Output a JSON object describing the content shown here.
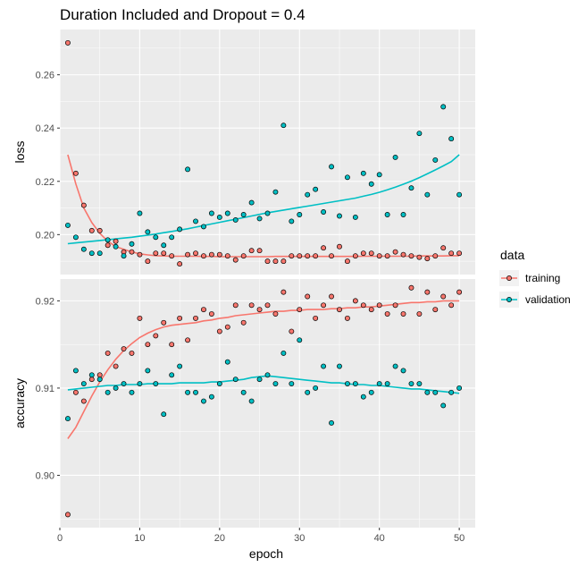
{
  "chart_data": {
    "type": "scatter",
    "title": "Duration Included and Dropout = 0.4",
    "xlabel": "epoch",
    "x_ticks": [
      0,
      10,
      20,
      30,
      40,
      50
    ],
    "xlim": [
      0,
      52
    ],
    "legend": {
      "title": "data",
      "placement": "right",
      "entries": [
        "training",
        "validation"
      ]
    },
    "colors": {
      "training": "#F8766D",
      "validation": "#00BFC4",
      "panel": "#EBEBEB",
      "grid": "#FFFFFF"
    },
    "panels": [
      {
        "ylabel": "loss",
        "ylim": [
          0.185,
          0.277
        ],
        "y_ticks": [
          0.2,
          0.22,
          0.24,
          0.26
        ],
        "y_tick_labels": [
          "0.20",
          "0.22",
          "0.24",
          "0.26"
        ],
        "series": [
          {
            "name": "training",
            "x": [
              1,
              2,
              3,
              4,
              5,
              6,
              7,
              8,
              9,
              10,
              11,
              12,
              13,
              14,
              15,
              16,
              17,
              18,
              19,
              20,
              21,
              22,
              23,
              24,
              25,
              26,
              27,
              28,
              29,
              30,
              31,
              32,
              33,
              34,
              35,
              36,
              37,
              38,
              39,
              40,
              41,
              42,
              43,
              44,
              45,
              46,
              47,
              48,
              49,
              50
            ],
            "values": [
              0.272,
              0.223,
              0.211,
              0.2015,
              0.2015,
              0.196,
              0.1975,
              0.1935,
              0.1935,
              0.1925,
              0.19,
              0.193,
              0.193,
              0.192,
              0.189,
              0.1925,
              0.193,
              0.192,
              0.1925,
              0.1925,
              0.192,
              0.1905,
              0.192,
              0.194,
              0.194,
              0.19,
              0.19,
              0.19,
              0.192,
              0.192,
              0.192,
              0.192,
              0.195,
              0.192,
              0.1955,
              0.19,
              0.192,
              0.193,
              0.193,
              0.192,
              0.192,
              0.1935,
              0.1925,
              0.192,
              0.1915,
              0.191,
              0.192,
              0.195,
              0.193,
              0.193
            ],
            "smooth": [
              0.23,
              0.219,
              0.21,
              0.2045,
              0.2005,
              0.1975,
              0.1955,
              0.1945,
              0.1935,
              0.1928,
              0.1924,
              0.1921,
              0.192,
              0.1919,
              0.1919,
              0.1919,
              0.1919,
              0.1918,
              0.1918,
              0.1917,
              0.1917,
              0.1917,
              0.1917,
              0.1917,
              0.1917,
              0.1917,
              0.1918,
              0.1918,
              0.1918,
              0.1918,
              0.1918,
              0.1918,
              0.1918,
              0.1918,
              0.1918,
              0.1918,
              0.1918,
              0.1919,
              0.1919,
              0.1919,
              0.1919,
              0.1919,
              0.1919,
              0.1919,
              0.192,
              0.192,
              0.192,
              0.192,
              0.1921,
              0.1921
            ]
          },
          {
            "name": "validation",
            "x": [
              1,
              2,
              3,
              4,
              5,
              6,
              7,
              8,
              9,
              10,
              11,
              12,
              13,
              14,
              15,
              16,
              17,
              18,
              19,
              20,
              21,
              22,
              23,
              24,
              25,
              26,
              27,
              28,
              29,
              30,
              31,
              32,
              33,
              34,
              35,
              36,
              37,
              38,
              39,
              40,
              41,
              42,
              43,
              44,
              45,
              46,
              47,
              48,
              49,
              50
            ],
            "values": [
              0.2035,
              0.199,
              0.1945,
              0.193,
              0.193,
              0.198,
              0.1955,
              0.192,
              0.1965,
              0.208,
              0.201,
              0.199,
              0.196,
              0.199,
              0.202,
              0.2245,
              0.205,
              0.203,
              0.208,
              0.2065,
              0.208,
              0.2055,
              0.2075,
              0.212,
              0.206,
              0.208,
              0.216,
              0.241,
              0.205,
              0.2075,
              0.215,
              0.217,
              0.2085,
              0.2255,
              0.207,
              0.2215,
              0.2065,
              0.223,
              0.219,
              0.2225,
              0.2075,
              0.229,
              0.2075,
              0.2175,
              0.238,
              0.215,
              0.228,
              0.248,
              0.236,
              0.215
            ],
            "smooth": [
              0.1966,
              0.1969,
              0.1972,
              0.1975,
              0.1978,
              0.1981,
              0.1984,
              0.1987,
              0.199,
              0.1994,
              0.1998,
              0.2002,
              0.2007,
              0.2012,
              0.2017,
              0.2022,
              0.2028,
              0.2034,
              0.204,
              0.2046,
              0.2052,
              0.2058,
              0.2064,
              0.207,
              0.2076,
              0.2082,
              0.2087,
              0.2092,
              0.2097,
              0.2102,
              0.2107,
              0.2112,
              0.2117,
              0.2122,
              0.2127,
              0.2132,
              0.2137,
              0.2144,
              0.2151,
              0.2159,
              0.2168,
              0.2178,
              0.2189,
              0.2201,
              0.2214,
              0.2228,
              0.2243,
              0.2258,
              0.2274,
              0.23
            ]
          }
        ]
      },
      {
        "ylabel": "accuracy",
        "ylim": [
          0.894,
          0.9225
        ],
        "y_ticks": [
          0.9,
          0.91,
          0.92
        ],
        "y_tick_labels": [
          "0.90",
          "0.91",
          "0.92"
        ],
        "series": [
          {
            "name": "training",
            "x": [
              1,
              2,
              3,
              4,
              5,
              6,
              7,
              8,
              9,
              10,
              11,
              12,
              13,
              14,
              15,
              16,
              17,
              18,
              19,
              20,
              21,
              22,
              23,
              24,
              25,
              26,
              27,
              28,
              29,
              30,
              31,
              32,
              33,
              34,
              35,
              36,
              37,
              38,
              39,
              40,
              41,
              42,
              43,
              44,
              45,
              46,
              47,
              48,
              49,
              50
            ],
            "values": [
              0.8955,
              0.9095,
              0.9085,
              0.911,
              0.9115,
              0.914,
              0.9125,
              0.9145,
              0.914,
              0.918,
              0.915,
              0.916,
              0.9175,
              0.915,
              0.918,
              0.9155,
              0.918,
              0.919,
              0.9185,
              0.9165,
              0.917,
              0.9195,
              0.9175,
              0.9195,
              0.919,
              0.9195,
              0.9185,
              0.921,
              0.9165,
              0.919,
              0.9205,
              0.918,
              0.9195,
              0.9205,
              0.919,
              0.918,
              0.92,
              0.9195,
              0.919,
              0.9195,
              0.9185,
              0.9195,
              0.9185,
              0.9215,
              0.9185,
              0.921,
              0.919,
              0.9205,
              0.9195,
              0.921
            ],
            "smooth": [
              0.9042,
              0.9055,
              0.9073,
              0.9091,
              0.9107,
              0.9121,
              0.9133,
              0.9143,
              0.9151,
              0.9158,
              0.9163,
              0.9167,
              0.917,
              0.9172,
              0.9173,
              0.9174,
              0.9175,
              0.9177,
              0.9178,
              0.918,
              0.9181,
              0.9183,
              0.9184,
              0.9185,
              0.9186,
              0.9187,
              0.9188,
              0.9188,
              0.9189,
              0.9189,
              0.919,
              0.919,
              0.919,
              0.9191,
              0.9191,
              0.9192,
              0.9192,
              0.9193,
              0.9193,
              0.9194,
              0.9195,
              0.9196,
              0.9197,
              0.9198,
              0.9198,
              0.9199,
              0.9199,
              0.92,
              0.92,
              0.92
            ]
          },
          {
            "name": "validation",
            "x": [
              1,
              2,
              3,
              4,
              5,
              6,
              7,
              8,
              9,
              10,
              11,
              12,
              13,
              14,
              15,
              16,
              17,
              18,
              19,
              20,
              21,
              22,
              23,
              24,
              25,
              26,
              27,
              28,
              29,
              30,
              31,
              32,
              33,
              34,
              35,
              36,
              37,
              38,
              39,
              40,
              41,
              42,
              43,
              44,
              45,
              46,
              47,
              48,
              49,
              50
            ],
            "values": [
              0.9065,
              0.912,
              0.9105,
              0.9115,
              0.911,
              0.9095,
              0.91,
              0.9105,
              0.9095,
              0.9105,
              0.912,
              0.9105,
              0.907,
              0.9115,
              0.9125,
              0.9095,
              0.9095,
              0.9085,
              0.909,
              0.9105,
              0.913,
              0.911,
              0.9095,
              0.9085,
              0.911,
              0.9115,
              0.9105,
              0.914,
              0.9105,
              0.9155,
              0.9095,
              0.91,
              0.9125,
              0.906,
              0.9125,
              0.9105,
              0.9105,
              0.909,
              0.9095,
              0.9105,
              0.9105,
              0.9125,
              0.912,
              0.9105,
              0.9105,
              0.9095,
              0.9095,
              0.908,
              0.9095,
              0.91
            ],
            "smooth": [
              0.9098,
              0.9099,
              0.91,
              0.9101,
              0.9102,
              0.9103,
              0.9103,
              0.9104,
              0.9104,
              0.9104,
              0.9105,
              0.9105,
              0.9105,
              0.9105,
              0.9106,
              0.9106,
              0.9106,
              0.9106,
              0.9107,
              0.9107,
              0.9108,
              0.9109,
              0.911,
              0.9112,
              0.9113,
              0.9114,
              0.9113,
              0.9112,
              0.9111,
              0.911,
              0.9109,
              0.9108,
              0.9107,
              0.9106,
              0.9106,
              0.9105,
              0.9104,
              0.9104,
              0.9103,
              0.9103,
              0.9102,
              0.9101,
              0.91,
              0.9099,
              0.9099,
              0.9098,
              0.9097,
              0.9096,
              0.9095,
              0.9094
            ]
          }
        ]
      }
    ]
  }
}
